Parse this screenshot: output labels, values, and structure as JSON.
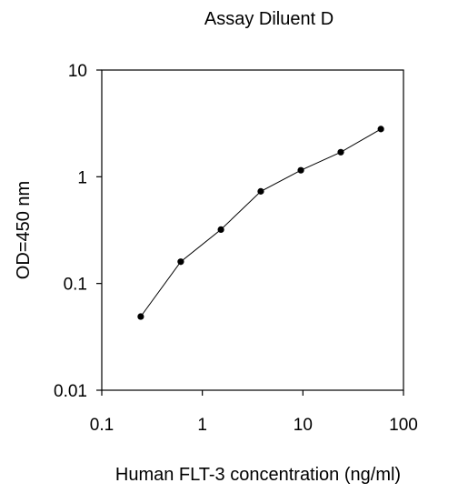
{
  "chart_data": {
    "type": "line",
    "title": "Assay Diluent D",
    "xlabel": "Human FLT-3 concentration (ng/ml)",
    "ylabel": "OD=450 nm",
    "x_scale": "log",
    "y_scale": "log",
    "xlim": [
      0.1,
      100
    ],
    "ylim": [
      0.01,
      10
    ],
    "x_ticks": [
      0.1,
      1,
      10,
      100
    ],
    "x_tick_labels": [
      "0.1",
      "1",
      "10",
      "100"
    ],
    "y_ticks": [
      0.01,
      0.1,
      1,
      10
    ],
    "y_tick_labels": [
      "0.01",
      "0.1",
      "1",
      "10"
    ],
    "grid": false,
    "series": [
      {
        "x": [
          0.244,
          0.61,
          1.53,
          3.81,
          9.54,
          23.8,
          59.6
        ],
        "y": [
          0.049,
          0.16,
          0.32,
          0.73,
          1.15,
          1.7,
          2.8
        ],
        "color": "#000000",
        "marker": "circle"
      }
    ]
  }
}
